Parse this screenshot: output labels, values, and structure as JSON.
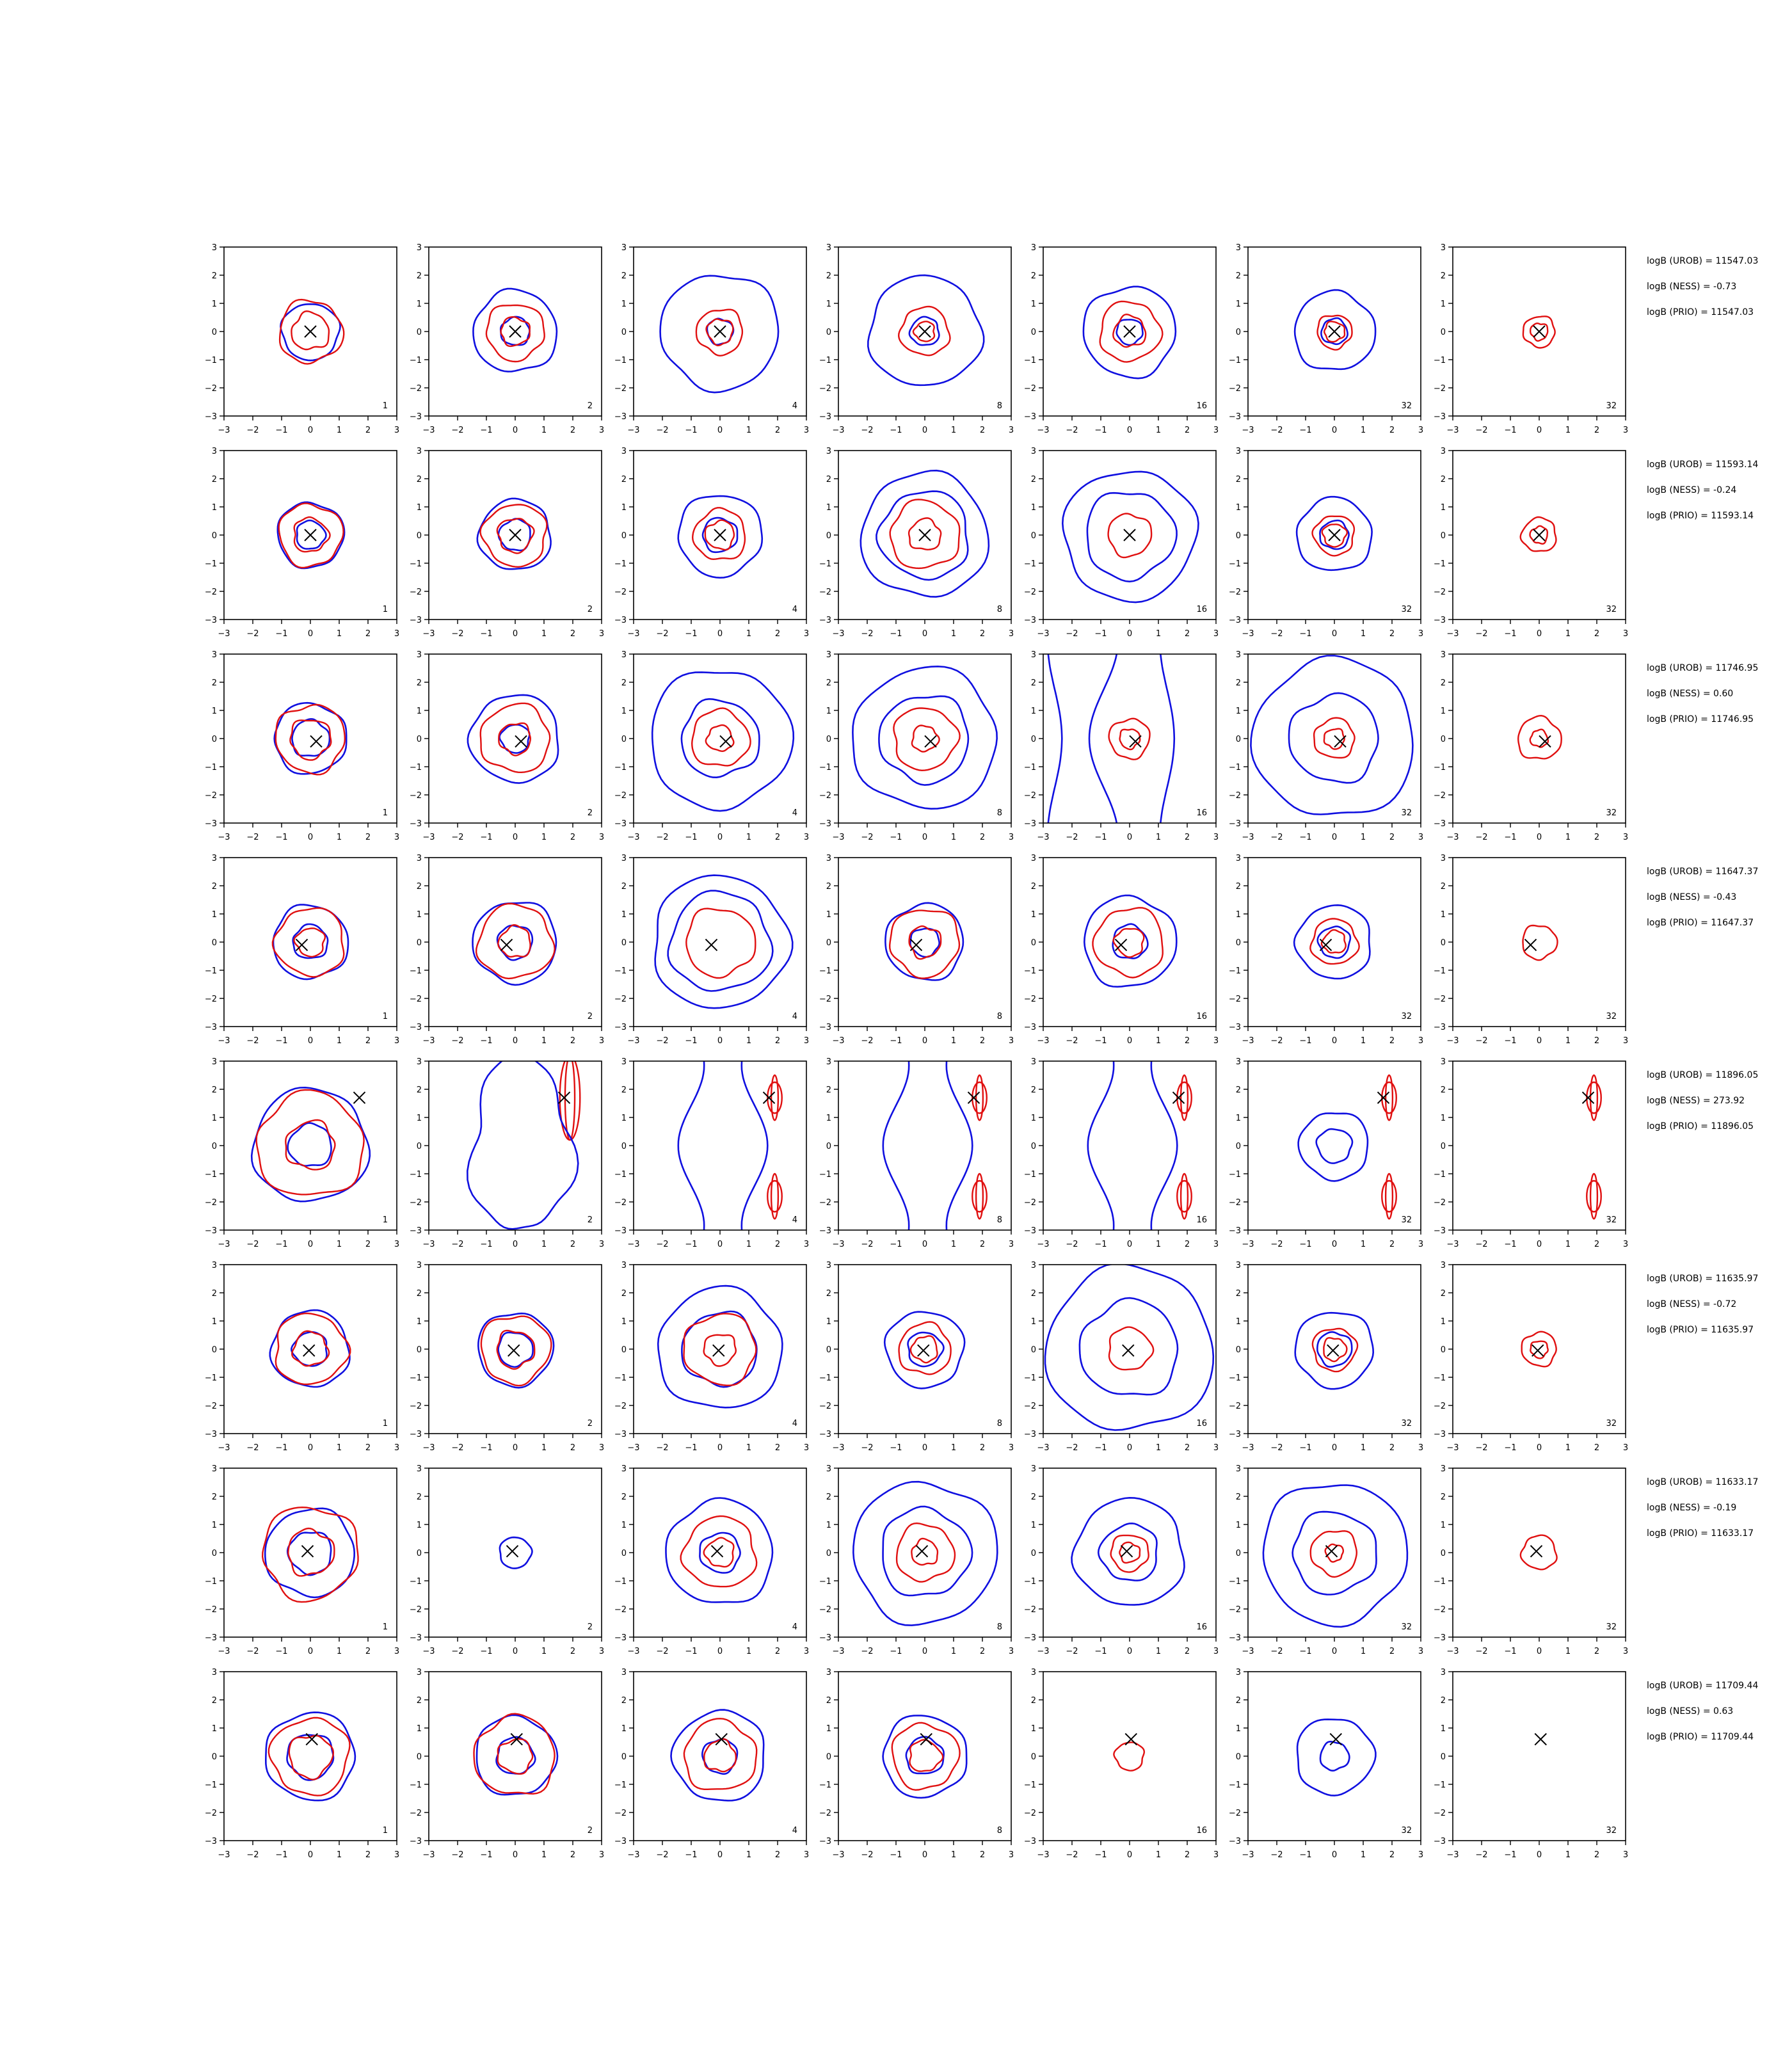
{
  "figure": {
    "description_rows": 8,
    "description_cols": 7
  },
  "chart_data": {
    "type": "contour-grid",
    "xlim": [
      -3,
      3
    ],
    "ylim": [
      -3,
      3
    ],
    "xticks": [
      "−3",
      "−2",
      "−1",
      "0",
      "1",
      "2",
      "3"
    ],
    "yticks": [
      "3",
      "2",
      "1",
      "0",
      "−1",
      "−2",
      "−3"
    ],
    "colors": {
      "blue": "#1010e0",
      "red": "#e01010",
      "marker": "#000000",
      "axes": "#000000"
    },
    "panel_labels": [
      "1",
      "2",
      "4",
      "8",
      "16",
      "32",
      "32"
    ],
    "rows": [
      {
        "marker": [
          0.0,
          0.0
        ],
        "annotations": [
          "logB (UROB) = 11547.03",
          "logB (NESS) = -0.73",
          "logB (PRIO) = 11547.03"
        ],
        "panels": [
          {
            "blue": [
              1.0
            ],
            "red": [
              1.1,
              0.65
            ]
          },
          {
            "blue": [
              1.45,
              0.5
            ],
            "red": [
              1.0,
              0.5
            ]
          },
          {
            "blue": [
              2.05,
              0.45
            ],
            "red": [
              0.8,
              0.45
            ]
          },
          {
            "blue": [
              1.95,
              0.5
            ],
            "red": [
              0.85,
              0.35
            ]
          },
          {
            "blue": [
              1.6,
              0.45
            ],
            "red": [
              1.05,
              0.55
            ]
          },
          {
            "blue": [
              1.4,
              0.45
            ],
            "red": [
              0.6,
              0.35
            ]
          },
          {
            "blue": [],
            "red": [
              0.55,
              0.3
            ]
          }
        ]
      },
      {
        "marker": [
          0.0,
          0.0
        ],
        "annotations": [
          "logB (UROB) = 11593.14",
          "logB (NESS) = -0.24",
          "logB (PRIO) = 11593.14"
        ],
        "panels": [
          {
            "blue": [
              1.15,
              0.5
            ],
            "red": [
              1.1,
              0.6
            ]
          },
          {
            "blue": [
              1.25,
              0.55
            ],
            "red": [
              1.1,
              0.6
            ]
          },
          {
            "blue": [
              1.45,
              0.6
            ],
            "red": [
              0.9,
              0.5
            ]
          },
          {
            "blue": [
              2.2,
              1.55
            ],
            "red": [
              1.2,
              0.55
            ]
          },
          {
            "blue": [
              2.3,
              1.55
            ],
            "red": [
              0.75
            ]
          },
          {
            "blue": [
              1.3,
              0.5
            ],
            "red": [
              0.7,
              0.4
            ]
          },
          {
            "blue": [],
            "red": [
              0.6,
              0.3
            ]
          }
        ]
      },
      {
        "marker": [
          0.2,
          -0.1
        ],
        "annotations": [
          "logB (UROB) = 11746.95",
          "logB (NESS) = 0.60",
          "logB (PRIO) = 11746.95"
        ],
        "panels": [
          {
            "blue": [
              1.25,
              0.65
            ],
            "red": [
              1.2,
              0.7
            ]
          },
          {
            "blue": [
              1.55,
              0.5
            ],
            "red": [
              1.2,
              0.55
            ]
          },
          {
            "blue": [
              2.45,
              1.35
            ],
            "red": [
              1.0,
              0.45
            ]
          },
          {
            "blue": [
              2.5,
              1.55
            ],
            "red": [
              1.1,
              0.45
            ]
          },
          {
            "blue": [],
            "red": [
              0.7,
              0.35
            ]
          },
          {
            "blue": [
              2.8,
              1.55
            ],
            "red": [
              0.7,
              0.35
            ]
          },
          {
            "blue": [],
            "red": [
              0.75,
              0.3
            ]
          }
        ]
      },
      {
        "marker": [
          -0.3,
          -0.1
        ],
        "annotations": [
          "logB (UROB) = 11647.37",
          "logB (NESS) = -0.43",
          "logB (PRIO) = 11647.37"
        ],
        "panels": [
          {
            "blue": [
              1.3,
              0.6
            ],
            "red": [
              1.2,
              0.5
            ]
          },
          {
            "blue": [
              1.45,
              0.6
            ],
            "red": [
              1.3,
              0.55
            ]
          },
          {
            "blue": [
              2.35,
              1.75
            ],
            "red": [
              1.2
            ]
          },
          {
            "blue": [
              1.35,
              0.5
            ],
            "red": [
              1.2,
              0.55
            ]
          },
          {
            "blue": [
              1.6,
              0.6
            ],
            "red": [
              1.2,
              0.5
            ]
          },
          {
            "blue": [
              1.3,
              0.55
            ],
            "red": [
              0.8,
              0.4
            ]
          },
          {
            "blue": [],
            "red": [
              0.6
            ]
          }
        ]
      },
      {
        "marker": [
          1.7,
          1.7
        ],
        "annotations": [
          "logB (UROB) = 11896.05",
          "logB (NESS) = 273.92",
          "logB (PRIO) = 11896.05"
        ],
        "panels": [
          {
            "blue": [
              2.0,
              0.75
            ],
            "red": [
              1.85,
              0.85
            ]
          },
          {
            "blue": [],
            "red": []
          },
          {
            "blue": [],
            "red": []
          },
          {
            "blue": [],
            "red": []
          },
          {
            "blue": [],
            "red": []
          },
          {
            "blue": [
              1.2,
              0.6
            ],
            "red": []
          },
          {
            "blue": [],
            "red": []
          }
        ]
      },
      {
        "marker": [
          -0.05,
          -0.05
        ],
        "annotations": [
          "logB (UROB) = 11635.97",
          "logB (NESS) = -0.72",
          "logB (PRIO) = 11635.97"
        ],
        "panels": [
          {
            "blue": [
              1.35,
              0.6
            ],
            "red": [
              1.25,
              0.6
            ]
          },
          {
            "blue": [
              1.3,
              0.6
            ],
            "red": [
              1.2,
              0.65
            ]
          },
          {
            "blue": [
              2.15,
              1.3
            ],
            "red": [
              1.25,
              0.55
            ]
          },
          {
            "blue": [
              1.35,
              0.6
            ],
            "red": [
              0.9,
              0.45
            ]
          },
          {
            "blue": [
              2.9,
              1.7
            ],
            "red": [
              0.75
            ]
          },
          {
            "blue": [
              1.35,
              0.6
            ],
            "red": [
              0.75,
              0.4
            ]
          },
          {
            "blue": [],
            "red": [
              0.6,
              0.3
            ]
          }
        ]
      },
      {
        "marker": [
          -0.1,
          0.05
        ],
        "annotations": [
          "logB (UROB) = 11633.17",
          "logB (NESS) = -0.19",
          "logB (PRIO) = 11633.17"
        ],
        "panels": [
          {
            "blue": [
              1.55,
              0.75
            ],
            "red": [
              1.65,
              0.8
            ]
          },
          {
            "blue": [
              0.55
            ],
            "red": []
          },
          {
            "blue": [
              1.85,
              0.7
            ],
            "red": [
              1.25,
              0.5
            ]
          },
          {
            "blue": [
              2.5,
              1.55
            ],
            "red": [
              1.0,
              0.45
            ]
          },
          {
            "blue": [
              1.9,
              1.0
            ],
            "red": [
              0.65,
              0.35
            ]
          },
          {
            "blue": [
              2.5,
              1.45
            ],
            "red": [
              0.8,
              0.3
            ]
          },
          {
            "blue": [],
            "red": [
              0.6
            ]
          }
        ]
      },
      {
        "marker": [
          0.05,
          0.6
        ],
        "annotations": [
          "logB (UROB) = 11709.44",
          "logB (NESS) = 0.63",
          "logB (PRIO) = 11709.44"
        ],
        "panels": [
          {
            "blue": [
              1.55,
              0.8
            ],
            "red": [
              1.35,
              0.75
            ]
          },
          {
            "blue": [
              1.4,
              0.65
            ],
            "red": [
              1.4,
              0.6
            ]
          },
          {
            "blue": [
              1.6,
              0.6
            ],
            "red": [
              1.25,
              0.55
            ]
          },
          {
            "blue": [
              1.45,
              0.65
            ],
            "red": [
              1.15,
              0.55
            ]
          },
          {
            "blue": [],
            "red": [
              0.5
            ]
          },
          {
            "blue": [
              1.35,
              0.5
            ],
            "red": []
          },
          {
            "blue": [],
            "red": []
          }
        ]
      }
    ]
  }
}
